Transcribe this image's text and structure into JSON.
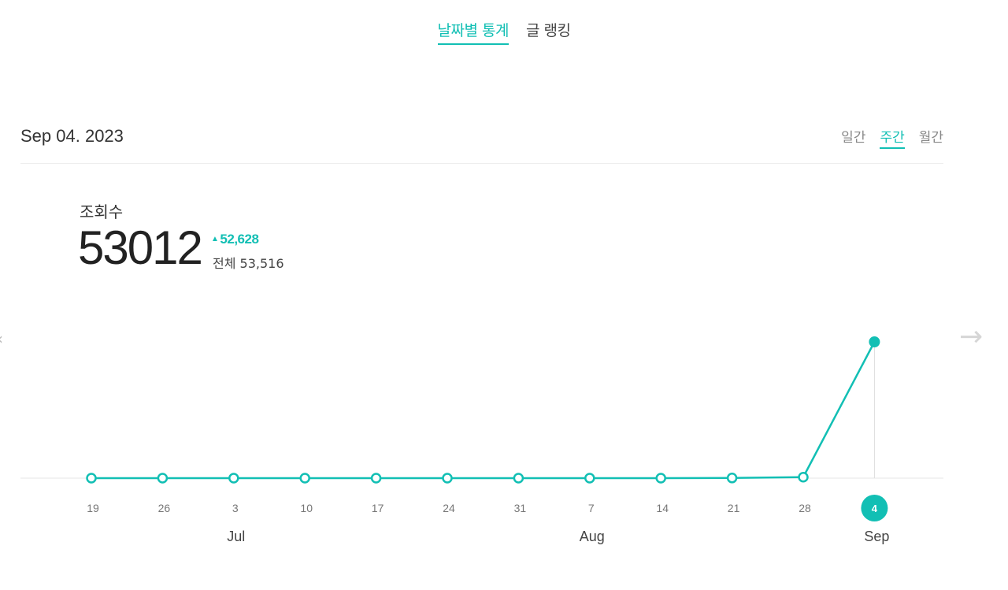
{
  "tabs": [
    {
      "label": "날짜별 통계",
      "active": true
    },
    {
      "label": "글 랭킹",
      "active": false
    }
  ],
  "date_label": "Sep 04. 2023",
  "period_tabs": [
    {
      "label": "일간",
      "active": false
    },
    {
      "label": "주간",
      "active": true
    },
    {
      "label": "월간",
      "active": false
    }
  ],
  "metric": {
    "title": "조회수",
    "value": "53012",
    "delta": "52,628",
    "total": "전체 53,516"
  },
  "nav": {
    "left_icon": "arrow-left-icon",
    "right_icon": "arrow-right-icon"
  },
  "colors": {
    "accent": "#12bfb4",
    "axis": "#e6e6e6",
    "tick_text": "#777777"
  },
  "chart_data": {
    "type": "line",
    "title": "",
    "xlabel": "",
    "ylabel": "",
    "x": [
      "19",
      "26",
      "3",
      "10",
      "17",
      "24",
      "31",
      "7",
      "14",
      "21",
      "28",
      "4"
    ],
    "months": [
      {
        "label": "Jul",
        "at_index": 2
      },
      {
        "label": "Aug",
        "at_index": 7
      },
      {
        "label": "Sep",
        "at_index": 11
      }
    ],
    "series": [
      {
        "values": [
          0,
          0,
          0,
          0,
          0,
          0,
          0,
          0,
          0,
          60,
          384,
          53012
        ]
      }
    ],
    "selected_index": 11,
    "ylim": [
      0,
      53012
    ],
    "grid": false
  }
}
